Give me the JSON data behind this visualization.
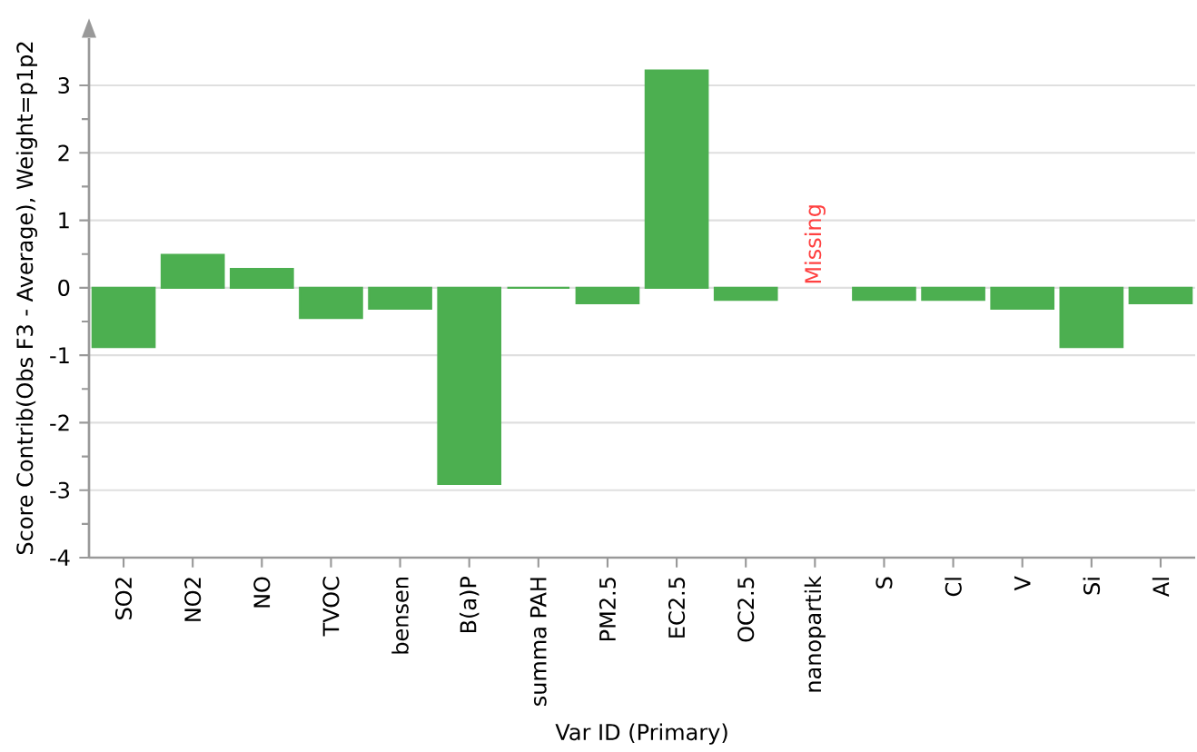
{
  "chart_data": {
    "type": "bar",
    "xlabel": "Var ID (Primary)",
    "ylabel": "Score Contrib(Obs F3 - Average), Weight=p1p2",
    "categories": [
      "SO2",
      "NO2",
      "NO",
      "TVOC",
      "bensen",
      "B(a)P",
      "summa PAH",
      "PM2.5",
      "EC2.5",
      "OC2.5",
      "nanopartik",
      "S",
      "Cl",
      "V",
      "Si",
      "Al"
    ],
    "values": [
      -0.88,
      0.49,
      0.28,
      -0.45,
      -0.31,
      -2.91,
      0,
      -0.23,
      3.22,
      -0.18,
      null,
      -0.18,
      -0.18,
      -0.31,
      -0.88,
      -0.23
    ],
    "color": "#4caf50",
    "ylim": [
      -4,
      3.7
    ],
    "yticks": [
      -4,
      -3,
      -2,
      -1,
      0,
      1,
      2,
      3
    ],
    "grid": "y",
    "annotations": [
      "Missing"
    ]
  }
}
